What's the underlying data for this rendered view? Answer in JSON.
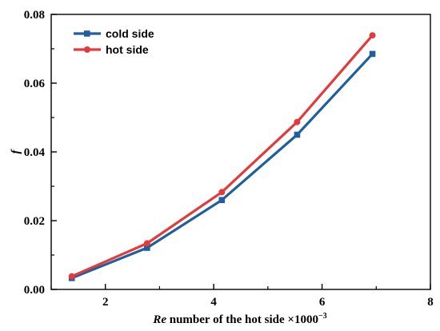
{
  "chart_data": {
    "type": "line",
    "title": "",
    "xlabel": {
      "italic_part": "Re",
      "rest": " number of the hot side ×1000",
      "superscript": "−3"
    },
    "ylabel": "f",
    "xlim": [
      1,
      8
    ],
    "ylim": [
      0.0,
      0.08
    ],
    "x_major_ticks": [
      2,
      4,
      6,
      8
    ],
    "x_tick_labels": [
      "2",
      "4",
      "6",
      "8"
    ],
    "y_major_ticks": [
      0.0,
      0.02,
      0.04,
      0.06,
      0.08
    ],
    "y_tick_labels": [
      "0.00",
      "0.02",
      "0.04",
      "0.06",
      "0.08"
    ],
    "grid": false,
    "legend_position": "top-left",
    "x": [
      1.38,
      2.77,
      4.15,
      5.54,
      6.93
    ],
    "series": [
      {
        "name": "cold side",
        "color": "#1f5fa0",
        "marker": "square",
        "values": [
          0.0033,
          0.0121,
          0.026,
          0.045,
          0.0685
        ]
      },
      {
        "name": "hot side",
        "color": "#e33b3b",
        "marker": "circle",
        "values": [
          0.0038,
          0.0134,
          0.0283,
          0.0487,
          0.0739
        ]
      }
    ]
  }
}
